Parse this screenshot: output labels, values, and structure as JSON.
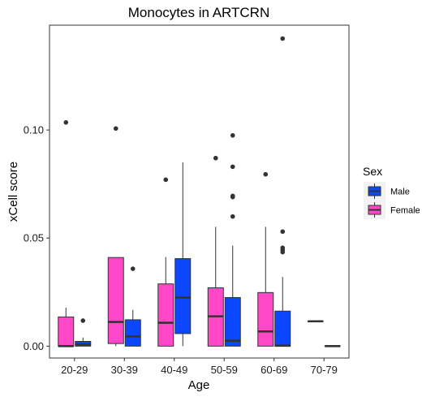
{
  "chart_data": {
    "type": "boxplot",
    "title": "Monocytes in ARTCRN",
    "xlabel": "Age",
    "ylabel": "xCell score",
    "categories": [
      "20-29",
      "30-39",
      "40-49",
      "50-59",
      "60-69",
      "70-79"
    ],
    "yticks": [
      "0.00",
      "0.05",
      "0.10"
    ],
    "ylim": [
      -0.0055,
      0.1485
    ],
    "grid": false,
    "legend": {
      "title": "Sex",
      "placement": "right",
      "entries": [
        {
          "key": "Male",
          "label": "Male",
          "color": "#0A47FF"
        },
        {
          "key": "Female",
          "label": "Female",
          "color": "#FF47C7"
        }
      ]
    },
    "series": [
      {
        "key": "Female",
        "color": "#FF47C7",
        "boxes": [
          {
            "category": "20-29",
            "min": 0.0,
            "q1": 0.0,
            "median": 0.0,
            "q3": 0.0135,
            "max": 0.0178,
            "outliers": [
              0.1035
            ]
          },
          {
            "category": "30-39",
            "min": 0.0,
            "q1": 0.0012,
            "median": 0.0112,
            "q3": 0.041,
            "max": 0.041,
            "outliers": [
              0.1007
            ]
          },
          {
            "category": "40-49",
            "min": 0.0,
            "q1": 0.0,
            "median": 0.0108,
            "q3": 0.0288,
            "max": 0.0412,
            "outliers": [
              0.077
            ]
          },
          {
            "category": "50-59",
            "min": 0.0,
            "q1": 0.0,
            "median": 0.0138,
            "q3": 0.027,
            "max": 0.0552,
            "outliers": [
              0.087
            ]
          },
          {
            "category": "60-69",
            "min": 0.0,
            "q1": 0.0,
            "median": 0.0068,
            "q3": 0.0248,
            "max": 0.0552,
            "outliers": [
              0.0795
            ]
          },
          {
            "category": "70-79",
            "min": 0.0115,
            "q1": 0.0115,
            "median": 0.0115,
            "q3": 0.0115,
            "max": 0.0115,
            "outliers": []
          }
        ]
      },
      {
        "key": "Male",
        "color": "#0A47FF",
        "boxes": [
          {
            "category": "20-29",
            "min": 0.0,
            "q1": 0.0,
            "median": 0.0008,
            "q3": 0.0022,
            "max": 0.004,
            "outliers": [
              0.0118
            ]
          },
          {
            "category": "30-39",
            "min": 0.0,
            "q1": 0.0,
            "median": 0.0045,
            "q3": 0.0122,
            "max": 0.0168,
            "outliers": [
              0.0358
            ]
          },
          {
            "category": "40-49",
            "min": 0.0,
            "q1": 0.0058,
            "median": 0.0225,
            "q3": 0.0405,
            "max": 0.085,
            "outliers": []
          },
          {
            "category": "50-59",
            "min": 0.0,
            "q1": 0.0,
            "median": 0.0025,
            "q3": 0.0225,
            "max": 0.0465,
            "outliers": [
              0.06,
              0.069,
              0.0695,
              0.083,
              0.0975
            ]
          },
          {
            "category": "60-69",
            "min": 0.0,
            "q1": 0.0,
            "median": 0.0002,
            "q3": 0.0162,
            "max": 0.032,
            "outliers": [
              0.0435,
              0.0445,
              0.0455,
              0.053,
              0.1423
            ]
          },
          {
            "category": "70-79",
            "min": 0.0,
            "q1": 0.0,
            "median": 0.0,
            "q3": 0.0,
            "max": 0.0,
            "outliers": []
          }
        ]
      }
    ]
  }
}
